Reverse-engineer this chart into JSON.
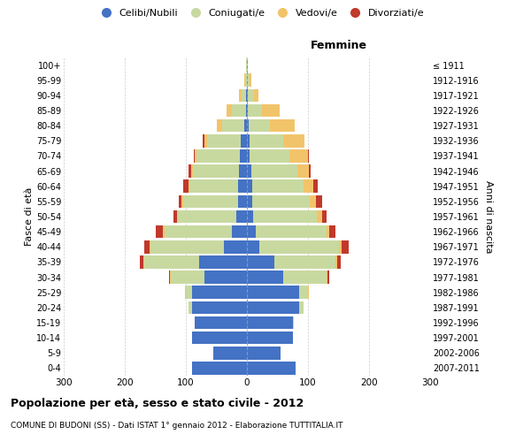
{
  "age_groups": [
    "0-4",
    "5-9",
    "10-14",
    "15-19",
    "20-24",
    "25-29",
    "30-34",
    "35-39",
    "40-44",
    "45-49",
    "50-54",
    "55-59",
    "60-64",
    "65-69",
    "70-74",
    "75-79",
    "80-84",
    "85-89",
    "90-94",
    "95-99",
    "100+"
  ],
  "birth_years": [
    "2007-2011",
    "2002-2006",
    "1997-2001",
    "1992-1996",
    "1987-1991",
    "1982-1986",
    "1977-1981",
    "1972-1976",
    "1967-1971",
    "1962-1966",
    "1957-1961",
    "1952-1956",
    "1947-1951",
    "1942-1946",
    "1937-1941",
    "1932-1936",
    "1927-1931",
    "1922-1926",
    "1917-1921",
    "1912-1916",
    "≤ 1911"
  ],
  "male": {
    "celibi": [
      90,
      55,
      90,
      85,
      90,
      90,
      70,
      78,
      38,
      25,
      18,
      15,
      14,
      13,
      12,
      10,
      5,
      2,
      1,
      0,
      0
    ],
    "coniugati": [
      0,
      0,
      0,
      0,
      5,
      10,
      55,
      90,
      120,
      110,
      95,
      90,
      80,
      75,
      70,
      55,
      35,
      22,
      8,
      3,
      1
    ],
    "vedovi": [
      0,
      0,
      0,
      0,
      0,
      1,
      1,
      2,
      2,
      2,
      2,
      2,
      2,
      3,
      3,
      5,
      10,
      10,
      4,
      1,
      0
    ],
    "divorziati": [
      0,
      0,
      0,
      0,
      0,
      1,
      2,
      5,
      8,
      12,
      5,
      5,
      8,
      4,
      2,
      2,
      0,
      0,
      0,
      0,
      0
    ]
  },
  "female": {
    "nubili": [
      80,
      55,
      75,
      75,
      85,
      85,
      60,
      45,
      20,
      15,
      10,
      8,
      8,
      7,
      5,
      4,
      3,
      2,
      1,
      0,
      0
    ],
    "coniugate": [
      0,
      0,
      0,
      2,
      8,
      15,
      70,
      100,
      130,
      115,
      105,
      95,
      85,
      75,
      65,
      55,
      35,
      22,
      10,
      4,
      1
    ],
    "vedove": [
      0,
      0,
      0,
      0,
      0,
      1,
      2,
      3,
      5,
      5,
      8,
      10,
      15,
      20,
      30,
      35,
      40,
      30,
      8,
      3,
      0
    ],
    "divorziate": [
      0,
      0,
      0,
      0,
      0,
      1,
      3,
      5,
      12,
      10,
      8,
      10,
      8,
      2,
      2,
      0,
      0,
      0,
      0,
      0,
      0
    ]
  },
  "colors": {
    "celibi": "#4472C4",
    "coniugati": "#C8D9A0",
    "vedovi": "#F2C46A",
    "divorziati": "#C0392B"
  },
  "xlim": 300,
  "title": "Popolazione per età, sesso e stato civile - 2012",
  "subtitle": "COMUNE DI BUDONI (SS) - Dati ISTAT 1° gennaio 2012 - Elaborazione TUTTITALIA.IT",
  "ylabel_left": "Fasce di età",
  "ylabel_right": "Anni di nascita",
  "xlabel_right": "Femmine",
  "background_color": "#FFFFFF",
  "grid_color": "#CCCCCC"
}
